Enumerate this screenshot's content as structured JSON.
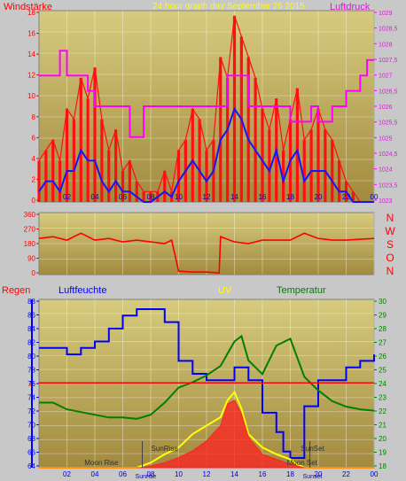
{
  "header": {
    "left_label": "Windstärke",
    "title": "24 hour graph day  September 26 2015",
    "right_label": "Luftdruck"
  },
  "colors": {
    "wind_max": "#ff1010",
    "wind_avg": "#1414ff",
    "pressure": "#ff00ff",
    "direction": "#ff0000",
    "humidity": "#0000ff",
    "temperature": "#008000",
    "uv": "#ffff00",
    "radiation": "#ff2020",
    "rain": "#ff0000",
    "sun_lines": "#404040",
    "plot_top": "#d6cb7e",
    "plot_bottom": "#a28a3e"
  },
  "sun_moon": {
    "sunrise_label": "SunRise",
    "sunset_label": "SunSet",
    "moonrise_label": "Moon Rise",
    "moonset_label": "Moon Set",
    "bottom_sunrise": "Sunrise",
    "bottom_sunset": "Sunset",
    "sunrise_hour": 7.4,
    "sunset_hour": 19.4,
    "moonrise_hour": 3.0,
    "moonset_hour": 17.5
  },
  "chart_data": [
    {
      "type": "line",
      "name": "wind_pressure",
      "x_ticks": [
        "02",
        "04",
        "06",
        "08",
        "10",
        "12",
        "14",
        "16",
        "18",
        "20",
        "22",
        "00"
      ],
      "xlim": [
        0,
        24
      ],
      "y_left_ticks": [
        "18",
        "16",
        "14",
        "12",
        "10",
        "8",
        "6",
        "4",
        "2",
        "0"
      ],
      "ylim_left": [
        0,
        18.5
      ],
      "y_right_ticks": [
        "1029",
        "1028,5",
        "1028",
        "1027,5",
        "1027",
        "1026,5",
        "1026",
        "1025,5",
        "1025",
        "1024,5",
        "1024",
        "1023,5",
        "1023"
      ],
      "ylim_right": [
        1022.9,
        1029.1
      ],
      "series": [
        {
          "key": "wind_max",
          "color": "#ff1010",
          "x": [
            0,
            0.5,
            1,
            1.5,
            2,
            2.5,
            3,
            3.5,
            4,
            4.5,
            5,
            5.5,
            6,
            6.5,
            7,
            7.5,
            8,
            8.5,
            9,
            9.5,
            10,
            10.5,
            11,
            11.5,
            12,
            12.5,
            13,
            13.5,
            14,
            14.5,
            15,
            15.5,
            16,
            16.5,
            17,
            17.5,
            18,
            18.5,
            19,
            19.5,
            20,
            20.5,
            21,
            21.5,
            22,
            22.5,
            23,
            23.5,
            24
          ],
          "y": [
            4,
            5,
            6,
            4,
            9,
            8,
            12,
            10,
            13,
            8,
            5,
            7,
            3,
            4,
            2,
            1,
            1,
            1,
            3,
            1,
            5,
            6,
            9,
            8,
            5,
            6,
            14,
            12,
            18,
            16,
            14,
            12,
            9,
            7,
            10,
            5,
            8,
            11,
            6,
            7,
            9,
            7,
            6,
            4,
            2,
            1,
            0,
            0,
            0
          ]
        },
        {
          "key": "wind_avg",
          "color": "#1414ff",
          "x": [
            0,
            0.5,
            1,
            1.5,
            2,
            2.5,
            3,
            3.5,
            4,
            4.5,
            5,
            5.5,
            6,
            6.5,
            7,
            7.5,
            8,
            8.5,
            9,
            9.5,
            10,
            10.5,
            11,
            11.5,
            12,
            12.5,
            13,
            13.5,
            14,
            14.5,
            15,
            15.5,
            16,
            16.5,
            17,
            17.5,
            18,
            18.5,
            19,
            19.5,
            20,
            20.5,
            21,
            21.5,
            22,
            22.5,
            23,
            23.5,
            24
          ],
          "y": [
            1,
            2,
            2,
            1,
            3,
            3,
            5,
            4,
            4,
            2,
            1,
            2,
            1,
            1,
            0.5,
            0,
            0,
            0.5,
            1,
            0.5,
            2,
            3,
            4,
            3,
            2,
            3,
            6,
            7,
            9,
            8,
            6,
            5,
            4,
            3,
            5,
            2,
            4,
            5,
            2,
            3,
            3,
            3,
            2,
            1,
            1,
            0,
            0,
            0,
            0
          ]
        },
        {
          "key": "pressure",
          "color": "#ff00ff",
          "axis": "right",
          "x": [
            0,
            1,
            1.5,
            2,
            2.5,
            3,
            3.5,
            4,
            5,
            6,
            6.5,
            7,
            7.5,
            8,
            9,
            10,
            11,
            12,
            13,
            13.5,
            14,
            15,
            16,
            17,
            18,
            19,
            19.5,
            20,
            21,
            22,
            23,
            23.5,
            24
          ],
          "y": [
            1027,
            1027,
            1027.8,
            1027,
            1027,
            1027,
            1026.5,
            1026,
            1026,
            1026,
            1025,
            1025,
            1026,
            1026,
            1026,
            1026,
            1026,
            1026,
            1026,
            1027,
            1027,
            1026,
            1026,
            1026,
            1025.5,
            1025.5,
            1026,
            1025.5,
            1026,
            1026.5,
            1027,
            1027.5,
            1027.5
          ]
        }
      ]
    },
    {
      "type": "line",
      "name": "wind_direction",
      "x_ticks": [
        "02",
        "04",
        "06",
        "08",
        "10",
        "12",
        "14",
        "16",
        "18",
        "20",
        "22",
        "00"
      ],
      "xlim": [
        0,
        24
      ],
      "y_left_ticks": [
        "360",
        "270",
        "180",
        "90",
        "0"
      ],
      "ylim_left": [
        0,
        360
      ],
      "y_right_labels": [
        "N",
        "W",
        "S",
        "O",
        "N"
      ],
      "series": [
        {
          "key": "direction",
          "color": "#ff0000",
          "x": [
            0,
            1,
            2,
            3,
            4,
            5,
            6,
            7,
            8,
            9,
            9.5,
            10,
            11,
            12,
            12.9,
            13,
            14,
            15,
            16,
            17,
            18,
            19,
            20,
            21,
            22,
            23,
            24
          ],
          "y": [
            210,
            220,
            200,
            240,
            200,
            210,
            190,
            200,
            190,
            180,
            200,
            20,
            15,
            15,
            10,
            220,
            190,
            180,
            200,
            200,
            200,
            240,
            210,
            200,
            200,
            205,
            210
          ]
        }
      ]
    },
    {
      "type": "line",
      "name": "humidity_temperature_uv",
      "labels": {
        "rain": "Regen",
        "humidity": "Luftfeuchte",
        "uv": "UV",
        "temperature": "Temperatur"
      },
      "x_ticks": [
        "02",
        "04",
        "06",
        "08",
        "10",
        "12",
        "14",
        "16",
        "18",
        "20",
        "22",
        "00"
      ],
      "xlim": [
        0,
        24
      ],
      "y_left_ticks": [
        "88",
        "86",
        "84",
        "82",
        "80",
        "78",
        "76",
        "74",
        "72",
        "70",
        "68",
        "66",
        "64"
      ],
      "ylim_left": [
        62.5,
        88.5
      ],
      "y_right_ticks": [
        "30",
        "29",
        "28",
        "27",
        "26",
        "25",
        "24",
        "23",
        "22",
        "21",
        "20",
        "19",
        "18"
      ],
      "ylim_right": [
        17.7,
        30.1
      ],
      "rain_axis_label": "0",
      "series": [
        {
          "key": "humidity",
          "color": "#0000ff",
          "x": [
            0,
            1,
            2,
            3,
            4,
            5,
            6,
            7,
            8,
            9,
            10,
            11,
            12,
            13,
            14,
            15,
            16,
            17,
            17.5,
            18,
            19,
            20,
            21,
            22,
            23,
            24
          ],
          "y": [
            81,
            81,
            80,
            81,
            82,
            84,
            86,
            87,
            87,
            85,
            79,
            77,
            76,
            76,
            78,
            76,
            71,
            68,
            65,
            64,
            72,
            76,
            76,
            78,
            79,
            80
          ]
        },
        {
          "key": "temperature",
          "color": "#008000",
          "axis": "right",
          "x": [
            0,
            1,
            2,
            3,
            4,
            5,
            6,
            7,
            8,
            9,
            10,
            11,
            12,
            13,
            14,
            14.5,
            15,
            16,
            17,
            18,
            19,
            20,
            21,
            22,
            23,
            24
          ],
          "y": [
            22.5,
            22.5,
            22,
            21.8,
            21.6,
            21.4,
            21.4,
            21.3,
            21.6,
            22.5,
            23.6,
            24.0,
            24.5,
            25.2,
            27.0,
            27.4,
            25.6,
            24.6,
            26.7,
            27.2,
            24.4,
            23.4,
            22.6,
            22.2,
            22.0,
            21.9
          ]
        },
        {
          "key": "uv",
          "color": "#ffff00",
          "x": [
            0,
            7,
            8,
            9,
            10,
            11,
            12,
            13,
            13.5,
            14,
            14.5,
            15,
            16,
            17,
            18,
            18.5,
            19,
            20,
            24
          ],
          "y": [
            0,
            0,
            0.3,
            0.8,
            1.2,
            2,
            2.5,
            3,
            4,
            4.5,
            3.5,
            2,
            1.2,
            0.8,
            0.5,
            0.2,
            0,
            0,
            0
          ]
        },
        {
          "key": "radiation",
          "color": "#ff2020",
          "x": [
            0,
            7.5,
            8,
            9,
            10,
            11,
            12,
            13,
            13.5,
            14,
            14.5,
            15,
            16,
            17,
            18,
            18.5,
            19,
            24
          ],
          "y": [
            0,
            0,
            0.1,
            0.3,
            0.6,
            1,
            1.6,
            2.5,
            3.8,
            4,
            3.2,
            1.8,
            0.8,
            0.5,
            0.2,
            0.1,
            0,
            0
          ]
        }
      ]
    }
  ]
}
